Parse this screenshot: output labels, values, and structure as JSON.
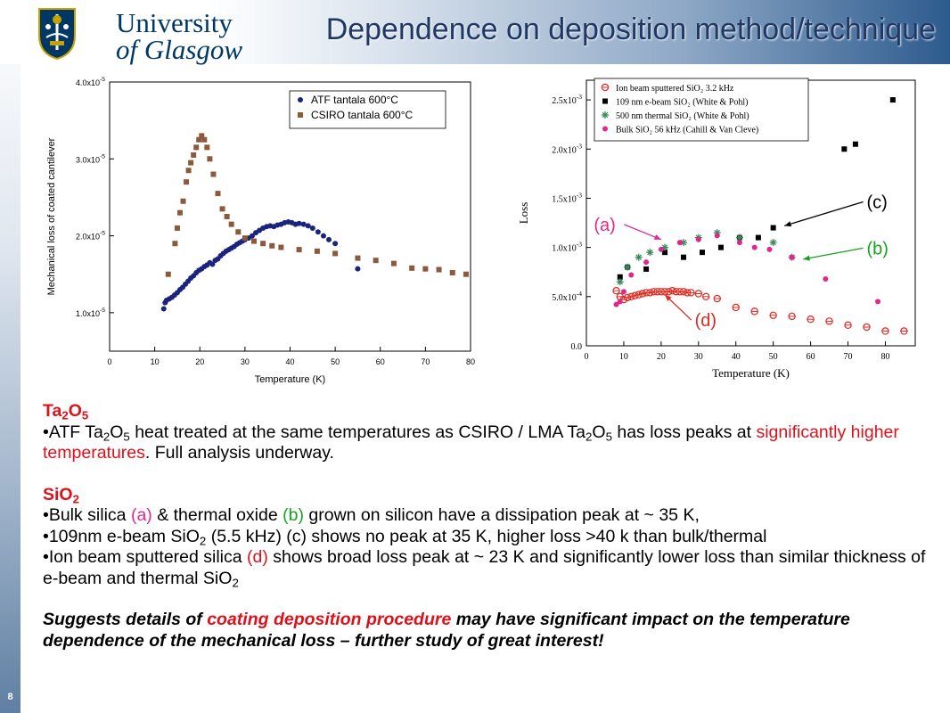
{
  "header": {
    "logo_line1": "University",
    "logo_line2": "of Glasgow",
    "title": "Dependence on deposition method/technique"
  },
  "slide_number": "8",
  "colors": {
    "title": "#1f3864",
    "highlight_red": "#e0101a",
    "highlight_pink": "#e0288c",
    "highlight_green": "#1aa020",
    "atf_series": "#1a237e",
    "csiro_series": "#8b5a3c"
  },
  "chart_data": [
    {
      "type": "scatter",
      "xlabel": "Temperature (K)",
      "ylabel": "Mechanical loss of coated cantilever",
      "xlim": [
        0,
        80
      ],
      "ylim": [
        5e-06,
        4e-05
      ],
      "xticks": [
        0,
        10,
        20,
        30,
        40,
        50,
        60,
        70,
        80
      ],
      "yticks": [
        {
          "value": 1e-05,
          "label": "1.0x10",
          "exp": "-5"
        },
        {
          "value": 2e-05,
          "label": "2.0x10",
          "exp": "-5"
        },
        {
          "value": 3e-05,
          "label": "3.0x10",
          "exp": "-5"
        },
        {
          "value": 4e-05,
          "label": "4.0x10",
          "exp": "-5"
        }
      ],
      "grid": false,
      "legend_position": "top-right",
      "series": [
        {
          "name": "ATF tantala 600°C",
          "marker": "circle",
          "color": "#1a237e",
          "points": [
            [
              12,
              1.05e-05
            ],
            [
              12.3,
              1.13e-05
            ],
            [
              12.6,
              1.16e-05
            ],
            [
              13.2,
              1.18e-05
            ],
            [
              13.8,
              1.2e-05
            ],
            [
              14.4,
              1.23e-05
            ],
            [
              15,
              1.26e-05
            ],
            [
              15.6,
              1.3e-05
            ],
            [
              16.2,
              1.33e-05
            ],
            [
              16.8,
              1.37e-05
            ],
            [
              17.4,
              1.41e-05
            ],
            [
              18,
              1.45e-05
            ],
            [
              18.6,
              1.48e-05
            ],
            [
              19.2,
              1.52e-05
            ],
            [
              19.8,
              1.55e-05
            ],
            [
              20.4,
              1.57e-05
            ],
            [
              21,
              1.6e-05
            ],
            [
              21.6,
              1.62e-05
            ],
            [
              22.2,
              1.65e-05
            ],
            [
              22.8,
              1.63e-05
            ],
            [
              23.4,
              1.68e-05
            ],
            [
              24,
              1.7e-05
            ],
            [
              24.6,
              1.74e-05
            ],
            [
              25.2,
              1.77e-05
            ],
            [
              25.8,
              1.8e-05
            ],
            [
              26.4,
              1.82e-05
            ],
            [
              27,
              1.84e-05
            ],
            [
              27.6,
              1.86e-05
            ],
            [
              28.2,
              1.89e-05
            ],
            [
              28.8,
              1.91e-05
            ],
            [
              29.4,
              1.93e-05
            ],
            [
              30,
              1.95e-05
            ],
            [
              30.8,
              1.97e-05
            ],
            [
              31.6,
              2e-05
            ],
            [
              32.4,
              2.04e-05
            ],
            [
              33.2,
              2.07e-05
            ],
            [
              34,
              2.1e-05
            ],
            [
              34.8,
              2.12e-05
            ],
            [
              35.6,
              2.13e-05
            ],
            [
              36.4,
              2.12e-05
            ],
            [
              37.2,
              2.14e-05
            ],
            [
              38,
              2.15e-05
            ],
            [
              38.8,
              2.17e-05
            ],
            [
              39.6,
              2.18e-05
            ],
            [
              40.4,
              2.17e-05
            ],
            [
              41.2,
              2.15e-05
            ],
            [
              42,
              2.16e-05
            ],
            [
              43,
              2.15e-05
            ],
            [
              44,
              2.13e-05
            ],
            [
              45,
              2.1e-05
            ],
            [
              46.2,
              2.05e-05
            ],
            [
              47.4,
              2e-05
            ],
            [
              48.6,
              1.95e-05
            ],
            [
              50,
              1.9e-05
            ],
            [
              55,
              1.57e-05
            ]
          ]
        },
        {
          "name": "CSIRO tantala 600°C",
          "marker": "square",
          "color": "#8b5a3c",
          "points": [
            [
              13,
              1.5e-05
            ],
            [
              14.5,
              1.9e-05
            ],
            [
              15,
              2.1e-05
            ],
            [
              15.6,
              2.3e-05
            ],
            [
              16.3,
              2.45e-05
            ],
            [
              17,
              2.7e-05
            ],
            [
              17.5,
              2.85e-05
            ],
            [
              18,
              2.95e-05
            ],
            [
              18.6,
              3.05e-05
            ],
            [
              19.2,
              3.15e-05
            ],
            [
              19.8,
              3.25e-05
            ],
            [
              20.4,
              3.3e-05
            ],
            [
              21,
              3.25e-05
            ],
            [
              21.6,
              3.15e-05
            ],
            [
              22.2,
              3e-05
            ],
            [
              23,
              2.8e-05
            ],
            [
              24,
              2.55e-05
            ],
            [
              25,
              2.35e-05
            ],
            [
              26,
              2.25e-05
            ],
            [
              27,
              2.15e-05
            ],
            [
              28.5,
              2.05e-05
            ],
            [
              30,
              1.97e-05
            ],
            [
              32,
              1.93e-05
            ],
            [
              34,
              1.9e-05
            ],
            [
              36,
              1.87e-05
            ],
            [
              38,
              1.85e-05
            ],
            [
              42,
              1.82e-05
            ],
            [
              46,
              1.8e-05
            ],
            [
              50,
              1.77e-05
            ],
            [
              55,
              1.71e-05
            ],
            [
              59,
              1.68e-05
            ],
            [
              63,
              1.64e-05
            ],
            [
              67,
              1.58e-05
            ],
            [
              70,
              1.57e-05
            ],
            [
              73,
              1.56e-05
            ],
            [
              76,
              1.52e-05
            ],
            [
              79,
              1.5e-05
            ]
          ]
        }
      ]
    },
    {
      "type": "scatter",
      "xlabel": "Temperature (K)",
      "ylabel": "Loss",
      "xlim": [
        0,
        88
      ],
      "ylim": [
        0,
        0.0027
      ],
      "xticks": [
        0,
        10,
        20,
        30,
        40,
        50,
        60,
        70,
        80
      ],
      "yticks": [
        {
          "value": 0,
          "label": "0.0",
          "exp": ""
        },
        {
          "value": 0.0005,
          "label": "5.0x10",
          "exp": "-4"
        },
        {
          "value": 0.001,
          "label": "1.0x10",
          "exp": "-3"
        },
        {
          "value": 0.0015,
          "label": "1.5x10",
          "exp": "-3"
        },
        {
          "value": 0.002,
          "label": "2.0x10",
          "exp": "-3"
        },
        {
          "value": 0.0025,
          "label": "2.5x10",
          "exp": "-3"
        }
      ],
      "grid": false,
      "legend_position": "top-left",
      "series": [
        {
          "name": "Ion beam sputtered SiO₂ 3.2 kHz",
          "marker": "open-circle",
          "color": "#e0281f",
          "points": [
            [
              8,
              0.00056
            ],
            [
              9,
              0.0005
            ],
            [
              10,
              0.00047
            ],
            [
              11,
              0.00049
            ],
            [
              12,
              0.0005
            ],
            [
              13,
              0.00051
            ],
            [
              14,
              0.00052
            ],
            [
              15,
              0.00053
            ],
            [
              16,
              0.00054
            ],
            [
              17,
              0.00054
            ],
            [
              18,
              0.00055
            ],
            [
              19,
              0.00055
            ],
            [
              20,
              0.00055
            ],
            [
              21,
              0.00055
            ],
            [
              22,
              0.00055
            ],
            [
              23,
              0.00056
            ],
            [
              24,
              0.00055
            ],
            [
              25,
              0.00055
            ],
            [
              26,
              0.00055
            ],
            [
              27,
              0.00054
            ],
            [
              28,
              0.00054
            ],
            [
              30,
              0.00053
            ],
            [
              32,
              0.0005
            ],
            [
              35,
              0.00048
            ],
            [
              40,
              0.00039
            ],
            [
              45,
              0.00035
            ],
            [
              50,
              0.00031
            ],
            [
              55,
              0.0003
            ],
            [
              60,
              0.00027
            ],
            [
              65,
              0.00025
            ],
            [
              70,
              0.00021
            ],
            [
              75,
              0.00019
            ],
            [
              80,
              0.00015
            ],
            [
              85,
              0.00015
            ]
          ]
        },
        {
          "name": "109 nm e-beam SiO₂ (White & Pohl)",
          "marker": "square",
          "color": "#000000",
          "points": [
            [
              9,
              0.0007
            ],
            [
              11,
              0.0008
            ],
            [
              16,
              0.00078
            ],
            [
              21,
              0.00095
            ],
            [
              26,
              0.0009
            ],
            [
              31,
              0.00095
            ],
            [
              36,
              0.001
            ],
            [
              41,
              0.0011
            ],
            [
              46,
              0.0011
            ],
            [
              50,
              0.0012
            ],
            [
              69,
              0.002
            ],
            [
              72,
              0.00205
            ],
            [
              82,
              0.0025
            ]
          ]
        },
        {
          "name": "500 nm thermal SiO₂ (White & Pohl)",
          "marker": "asterisk",
          "color": "#3a8a5a",
          "points": [
            [
              9,
              0.00065
            ],
            [
              11,
              0.0008
            ],
            [
              14,
              0.0009
            ],
            [
              17,
              0.00095
            ],
            [
              21,
              0.001
            ],
            [
              26,
              0.00105
            ],
            [
              30,
              0.0011
            ],
            [
              35,
              0.00115
            ],
            [
              41,
              0.0011
            ],
            [
              50,
              0.00105
            ],
            [
              55,
              0.0009
            ]
          ]
        },
        {
          "name": "Bulk SiO₂ 56 kHz (Cahill & Van Cleve)",
          "marker": "filled-circle",
          "color": "#e0288c",
          "points": [
            [
              8,
              0.00042
            ],
            [
              9,
              0.00045
            ],
            [
              10,
              0.00055
            ],
            [
              12,
              0.00072
            ],
            [
              16,
              0.00085
            ],
            [
              20,
              0.00098
            ],
            [
              25,
              0.00105
            ],
            [
              30,
              0.00108
            ],
            [
              35,
              0.00112
            ],
            [
              41,
              0.00105
            ],
            [
              45,
              0.001
            ],
            [
              49,
              0.00098
            ],
            [
              55,
              0.0009
            ],
            [
              64,
              0.00068
            ],
            [
              78,
              0.00045
            ]
          ]
        }
      ],
      "annotations": [
        {
          "label": "(a)",
          "color": "#e0288c",
          "text_at": [
            2,
            0.00117
          ],
          "arrow_to": [
            20,
            0.00108
          ]
        },
        {
          "label": "(b)",
          "color": "#1aa020",
          "text_at": [
            75,
            0.00093
          ],
          "arrow_to": [
            58,
            0.00088
          ]
        },
        {
          "label": "(c)",
          "color": "#000000",
          "text_at": [
            75,
            0.0014
          ],
          "arrow_to": [
            53,
            0.00122
          ]
        },
        {
          "label": "(d)",
          "color": "#e0281f",
          "text_at": [
            29,
            0.0002
          ],
          "arrow_to": [
            21,
            0.00052
          ]
        }
      ]
    }
  ],
  "body": {
    "ta2o5_heading": "Ta",
    "ta2o5_heading_sub1": "2",
    "ta2o5_heading_mid": "O",
    "ta2o5_heading_sub2": "5",
    "ta_line_p1": "•ATF Ta",
    "ta_line_s1": "2",
    "ta_line_p2": "O",
    "ta_line_s2": "5",
    "ta_line_p3": " heat treated at the same temperatures as CSIRO / LMA Ta",
    "ta_line_s3": "2",
    "ta_line_p4": "O",
    "ta_line_s4": "5",
    "ta_line_p5": " has loss peaks at ",
    "ta_line_red": "significantly higher temperatures",
    "ta_line_p6": ". Full analysis underway.",
    "sio2_heading": "SiO",
    "sio2_heading_sub": "2",
    "bullet1_p1": "•Bulk silica ",
    "bullet1_a": "(a)",
    "bullet1_p2": " & thermal oxide ",
    "bullet1_b": "(b)",
    "bullet1_p3": " grown on silicon have a dissipation peak at ~ 35 K,",
    "bullet2_p1": "•109nm e-beam SiO",
    "bullet2_sub": "2",
    "bullet2_p2": " (5.5 kHz) (c) shows no peak at 35 K, higher loss >40 k than bulk/thermal",
    "bullet3_p1": "•Ion beam sputtered silica ",
    "bullet3_d": "(d)",
    "bullet3_p2": " shows broad loss peak at ~ 23 K and significantly lower loss than similar thickness of e-beam and thermal SiO",
    "bullet3_sub": "2",
    "concl_p1": "Suggests details of ",
    "concl_red": "coating deposition procedure",
    "concl_p2": " may have significant impact on the temperature dependence of the mechanical loss – further study of great interest!"
  }
}
